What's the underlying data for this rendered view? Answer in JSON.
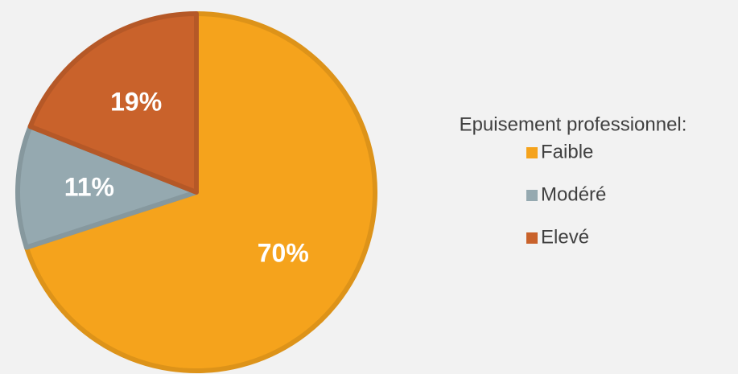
{
  "chart_data": {
    "type": "pie",
    "legend_title": "Epuisement professionnel:",
    "categories": [
      "Faible",
      "Modéré",
      "Elevé"
    ],
    "values": [
      70,
      11,
      19
    ],
    "value_labels": [
      "70%",
      "11%",
      "19%"
    ],
    "colors": [
      "#f5a31c",
      "#95a9b0",
      "#c9622b"
    ],
    "legend": "right"
  }
}
